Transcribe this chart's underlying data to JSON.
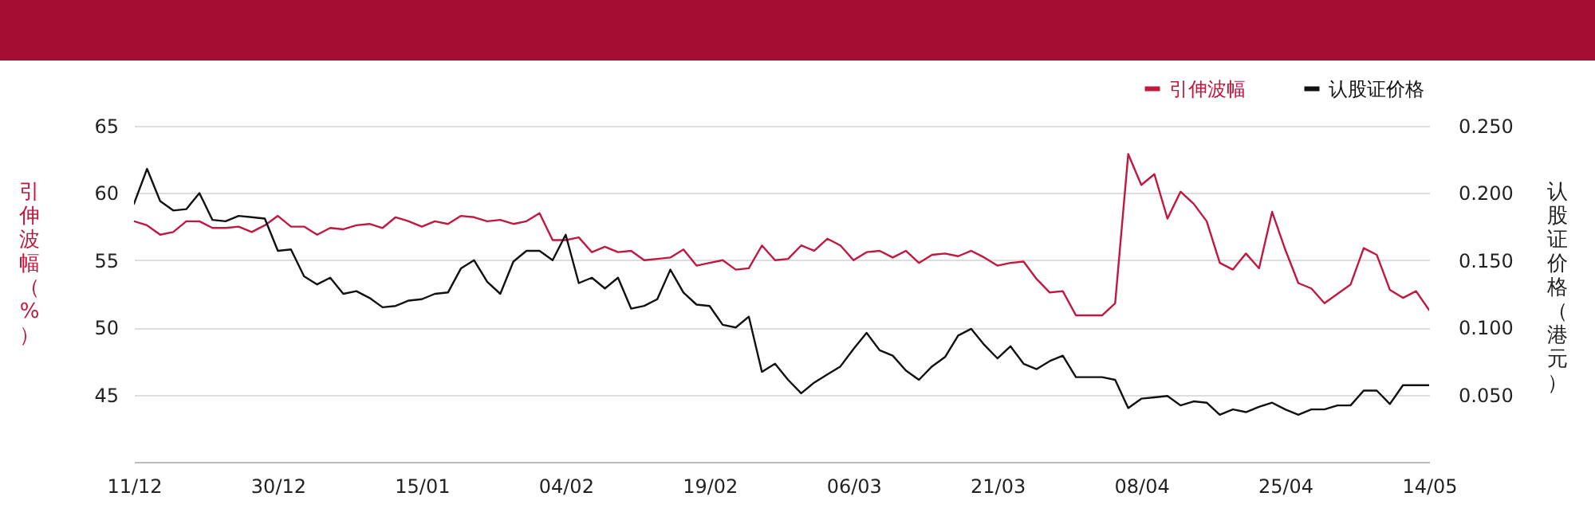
{
  "chart_data": {
    "type": "line",
    "ylabel": "引伸波幅（%）",
    "y2label": "认股证价格（港元）",
    "categories": [
      "11/12",
      null,
      null,
      null,
      null,
      null,
      null,
      null,
      null,
      null,
      null,
      "30/12",
      null,
      null,
      null,
      null,
      null,
      null,
      null,
      null,
      null,
      null,
      "15/01",
      null,
      null,
      null,
      null,
      null,
      null,
      null,
      null,
      null,
      null,
      "04/02",
      null,
      null,
      null,
      null,
      null,
      null,
      null,
      null,
      null,
      null,
      "19/02",
      null,
      null,
      null,
      null,
      null,
      null,
      null,
      null,
      null,
      null,
      "06/03",
      null,
      null,
      null,
      null,
      null,
      null,
      null,
      null,
      null,
      null,
      "21/03",
      null,
      null,
      null,
      null,
      null,
      null,
      null,
      null,
      null,
      null,
      "08/04",
      null,
      null,
      null,
      null,
      null,
      null,
      null,
      null,
      null,
      null,
      "25/04",
      null,
      null,
      null,
      null,
      null,
      null,
      null,
      null,
      null,
      null,
      "14/05"
    ],
    "series": [
      {
        "name": "引伸波幅",
        "color": "#c0183e",
        "values": [
          57.9,
          57.6,
          56.9,
          57.1,
          57.9,
          57.9,
          57.4,
          57.4,
          57.5,
          57.1,
          57.6,
          58.3,
          57.5,
          57.5,
          56.9,
          57.4,
          57.3,
          57.6,
          57.7,
          57.4,
          58.2,
          57.9,
          57.5,
          57.9,
          57.7,
          58.3,
          58.2,
          57.9,
          58.0,
          57.7,
          57.9,
          58.5,
          56.5,
          56.5,
          56.7,
          55.6,
          56.0,
          55.6,
          55.7,
          55.0,
          55.1,
          55.2,
          55.8,
          54.6,
          54.8,
          55.0,
          54.3,
          54.4,
          56.1,
          55.0,
          55.1,
          56.1,
          55.7,
          56.6,
          56.1,
          55.0,
          55.6,
          55.7,
          55.2,
          55.7,
          54.8,
          55.4,
          55.5,
          55.3,
          55.7,
          55.2,
          54.6,
          54.8,
          54.9,
          53.6,
          52.6,
          52.7,
          50.9,
          50.9,
          50.9,
          51.8,
          62.9,
          60.6,
          61.4,
          58.1,
          60.1,
          59.2,
          57.9,
          54.8,
          54.3,
          55.5,
          54.4,
          58.6,
          55.8,
          53.3,
          52.9,
          51.8,
          52.5,
          53.2,
          55.9,
          55.4,
          52.8,
          52.2,
          52.7,
          51.3
        ]
      },
      {
        "name": "认股证价格",
        "color": "#111111",
        "axis": "y2",
        "values": [
          0.192,
          0.218,
          0.194,
          0.187,
          0.188,
          0.2,
          0.18,
          0.179,
          0.183,
          0.182,
          0.181,
          0.157,
          0.158,
          0.138,
          0.132,
          0.137,
          0.125,
          0.127,
          0.122,
          0.115,
          0.116,
          0.12,
          0.121,
          0.125,
          0.126,
          0.144,
          0.15,
          0.134,
          0.125,
          0.149,
          0.157,
          0.157,
          0.15,
          0.169,
          0.133,
          0.137,
          0.129,
          0.137,
          0.114,
          0.116,
          0.121,
          0.143,
          0.126,
          0.117,
          0.116,
          0.102,
          0.1,
          0.108,
          0.067,
          0.073,
          0.061,
          0.051,
          0.059,
          0.065,
          0.071,
          0.084,
          0.096,
          0.083,
          0.079,
          0.068,
          0.061,
          0.071,
          0.078,
          0.094,
          0.099,
          0.087,
          0.077,
          0.086,
          0.073,
          0.069,
          0.075,
          0.079,
          0.063,
          0.063,
          0.063,
          0.061,
          0.04,
          0.047,
          0.048,
          0.049,
          0.042,
          0.045,
          0.044,
          0.035,
          0.039,
          0.037,
          0.041,
          0.044,
          0.039,
          0.035,
          0.039,
          0.039,
          0.042,
          0.042,
          0.053,
          0.053,
          0.043,
          0.057,
          0.057,
          0.057
        ]
      }
    ],
    "ylim": [
      40,
      65
    ],
    "yticks": [
      45,
      50,
      55,
      60,
      65
    ],
    "y2lim": [
      0,
      0.25
    ],
    "y2ticks": [
      {
        "value": 0.05,
        "label": "0.050"
      },
      {
        "value": 0.1,
        "label": "0.100"
      },
      {
        "value": 0.15,
        "label": "0.150"
      },
      {
        "value": 0.2,
        "label": "0.200"
      },
      {
        "value": 0.25,
        "label": "0.250"
      }
    ],
    "grid": "y",
    "legend": "top right",
    "marker": "none",
    "line_style": "solid"
  }
}
